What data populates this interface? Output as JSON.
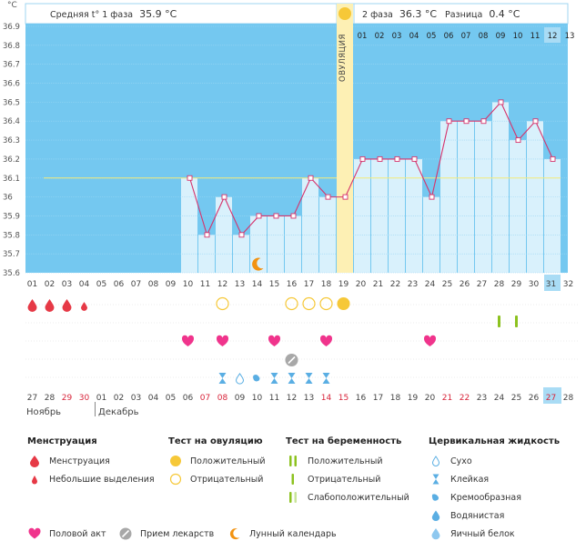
{
  "axis": {
    "unit": "°C"
  },
  "header": {
    "phase1_label": "Средняя t° 1 фаза",
    "phase1_value": "35.9 °C",
    "phase2_label": "2 фаза",
    "phase2_value": "36.3 °C",
    "diff_label": "Разница",
    "diff_value": "0.4 °C"
  },
  "ovulation_label": "ОВУЛЯЦИЯ",
  "chart_data": {
    "type": "line",
    "y_ticks": [
      "36.9",
      "36.8",
      "36.7",
      "36.6",
      "36.5",
      "36.4",
      "36.3",
      "36.2",
      "36.1",
      "36",
      "35.9",
      "35.8",
      "35.7",
      "35.6"
    ],
    "ylim": [
      35.6,
      36.9
    ],
    "coverline": 36.1,
    "days": [
      "01",
      "02",
      "03",
      "04",
      "05",
      "06",
      "07",
      "08",
      "09",
      "10",
      "11",
      "12",
      "13",
      "14",
      "15",
      "16",
      "17",
      "18",
      "19",
      "20",
      "21",
      "22",
      "23",
      "24",
      "25",
      "26",
      "27",
      "28",
      "29",
      "30",
      "31",
      "32"
    ],
    "temps": [
      null,
      null,
      null,
      null,
      null,
      null,
      null,
      null,
      null,
      36.1,
      35.8,
      36.0,
      35.8,
      35.9,
      35.9,
      35.9,
      36.1,
      36.0,
      36.0,
      36.2,
      36.2,
      36.2,
      36.2,
      36.0,
      36.4,
      36.4,
      36.4,
      36.5,
      36.3,
      36.4,
      36.2,
      null
    ],
    "ovulation_day": 19,
    "highlight_day": 31,
    "post_ovulation_numbers": [
      "01",
      "02",
      "03",
      "04",
      "05",
      "06",
      "07",
      "08",
      "09",
      "10",
      "11",
      "12",
      "13"
    ],
    "dates": [
      "27",
      "28",
      "29",
      "30",
      "01",
      "02",
      "03",
      "04",
      "05",
      "06",
      "07",
      "08",
      "09",
      "10",
      "11",
      "12",
      "13",
      "14",
      "15",
      "16",
      "17",
      "18",
      "19",
      "20",
      "21",
      "22",
      "23",
      "24",
      "25",
      "26",
      "27",
      "28"
    ],
    "red_dates": [
      2,
      3,
      10,
      11,
      17,
      18,
      24,
      25,
      30
    ],
    "months": [
      "Ноябрь",
      "Декабрь"
    ],
    "markers": {
      "menstruation": [
        [
          1,
          "big"
        ],
        [
          2,
          "big"
        ],
        [
          3,
          "big"
        ],
        [
          4,
          "small"
        ]
      ],
      "ovulation_test": [
        [
          12,
          "negative"
        ],
        [
          16,
          "negative"
        ],
        [
          17,
          "negative"
        ],
        [
          18,
          "negative"
        ],
        [
          19,
          "positive"
        ]
      ],
      "pregnancy_test": [
        28,
        29
      ],
      "intercourse": [
        10,
        12,
        15,
        18,
        24
      ],
      "medication": [
        16
      ],
      "moon": [
        14
      ],
      "fluid": [
        [
          12,
          "sticky"
        ],
        [
          13,
          "dry"
        ],
        [
          14,
          "creamy"
        ],
        [
          15,
          "sticky"
        ],
        [
          16,
          "sticky"
        ],
        [
          17,
          "sticky"
        ],
        [
          18,
          "sticky"
        ]
      ]
    }
  },
  "legend": {
    "menstruation": {
      "title": "Менструация",
      "items": [
        "Менструация",
        "Небольшие выделения"
      ]
    },
    "ovulation_test": {
      "title": "Тест на овуляцию",
      "items": [
        "Положительный",
        "Отрицательный"
      ]
    },
    "pregnancy_test": {
      "title": "Тест на беременность",
      "items": [
        "Положительный",
        "Отрицательный",
        "Слабоположительный"
      ]
    },
    "fluid": {
      "title": "Цервикальная жидкость",
      "items": [
        "Сухо",
        "Клейкая",
        "Кремообразная",
        "Водянистая",
        "Яичный белок"
      ]
    },
    "bottom": [
      "Половой акт",
      "Прием лекарств",
      "Лунный календарь"
    ]
  },
  "colors": {
    "sky": "#74c8f0",
    "bar": "#d9f1fc",
    "ovulation": "#fdf0b4",
    "line": "#d6336c",
    "red": "#e63946",
    "yellow": "#f6c838",
    "green": "#8cc21f",
    "pink": "#f0348c",
    "blue": "#5aaee3",
    "orange": "#f29312",
    "today": "#a9dcf5"
  }
}
